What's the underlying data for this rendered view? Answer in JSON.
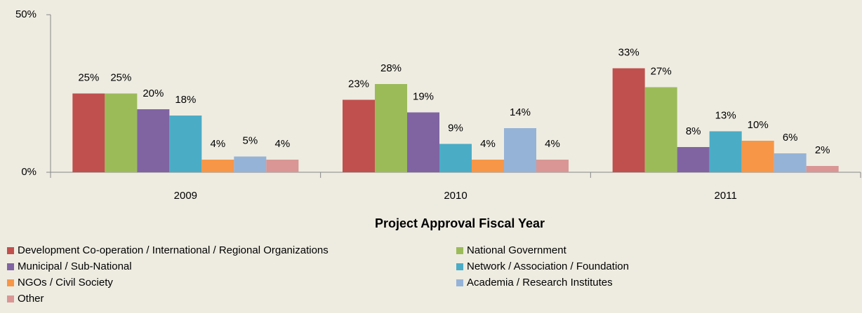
{
  "chart_data": {
    "type": "bar",
    "x_label": "Project Approval Fiscal Year",
    "categories": [
      "2009",
      "2010",
      "2011"
    ],
    "series": [
      {
        "name": "Development Co-operation / International / Regional Organizations",
        "color": "#c0504d",
        "values": [
          25,
          23,
          33
        ],
        "value_labels": [
          "25%",
          "23%",
          "33%"
        ]
      },
      {
        "name": "National Government",
        "color": "#9bbb59",
        "values": [
          25,
          28,
          27
        ],
        "value_labels": [
          "25%",
          "28%",
          "27%"
        ]
      },
      {
        "name": "Municipal / Sub-National",
        "color": "#8064a2",
        "values": [
          20,
          19,
          8
        ],
        "value_labels": [
          "20%",
          "19%",
          "8%"
        ]
      },
      {
        "name": "Network / Association / Foundation",
        "color": "#4bacc6",
        "values": [
          18,
          9,
          13
        ],
        "value_labels": [
          "18%",
          "9%",
          "13%"
        ]
      },
      {
        "name": "NGOs / Civil Society",
        "color": "#f79646",
        "values": [
          4,
          4,
          10
        ],
        "value_labels": [
          "4%",
          "4%",
          "10%"
        ]
      },
      {
        "name": "Academia / Research Institutes",
        "color": "#95b3d7",
        "values": [
          5,
          14,
          6
        ],
        "value_labels": [
          "5%",
          "14%",
          "6%"
        ]
      },
      {
        "name": "Other",
        "color": "#d99694",
        "values": [
          4,
          4,
          2
        ],
        "value_labels": [
          "4%",
          "4%",
          "2%"
        ]
      }
    ],
    "ylim": [
      0,
      50
    ],
    "yticks": [
      {
        "value": 0,
        "label": "0%"
      },
      {
        "value": 50,
        "label": "50%"
      }
    ],
    "legend": "bottom"
  }
}
